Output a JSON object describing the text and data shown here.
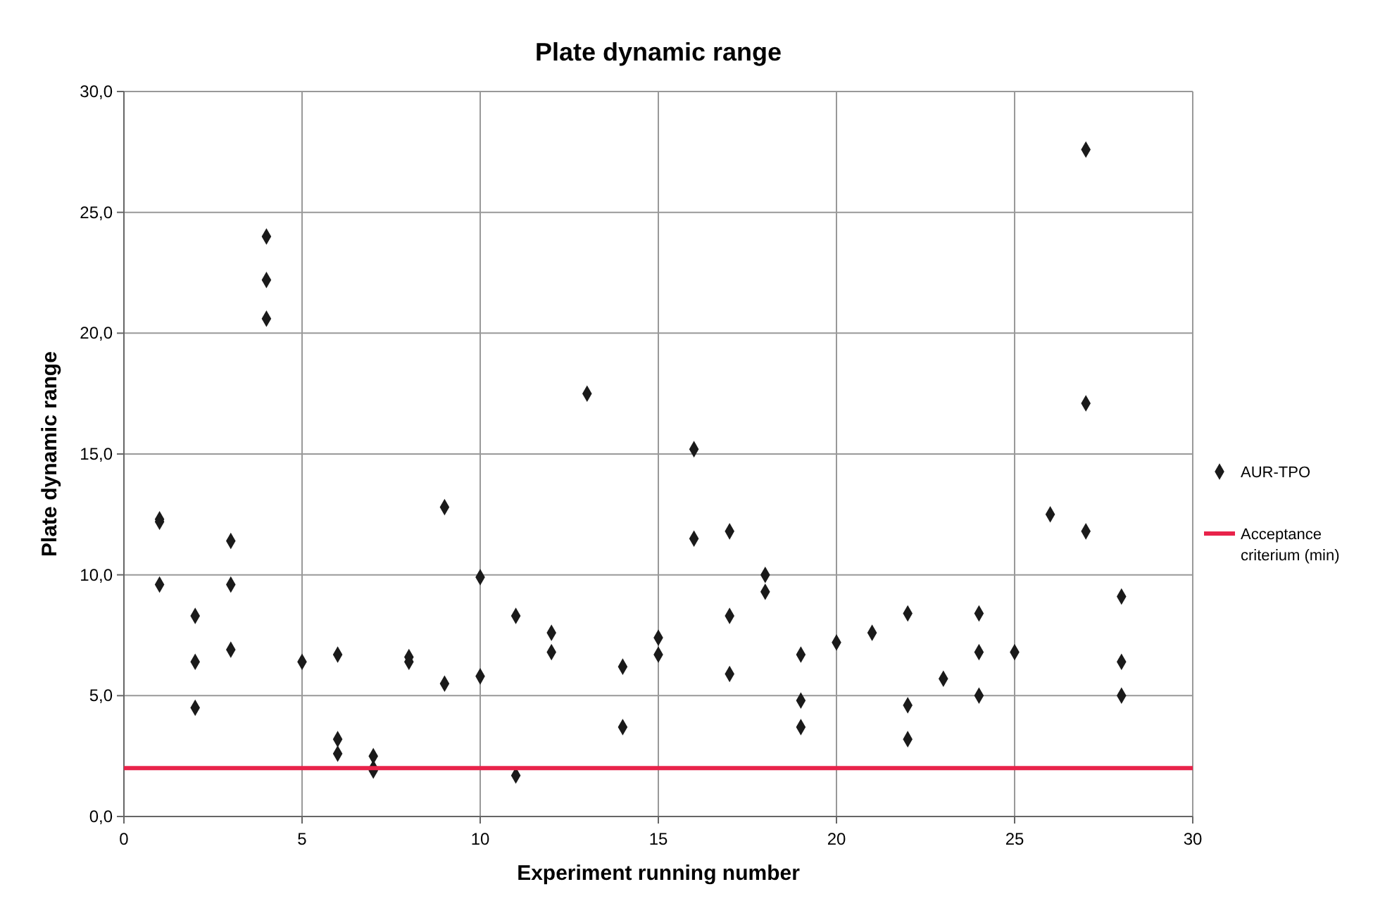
{
  "chart_data": {
    "type": "scatter",
    "title": "Plate dynamic range",
    "xlabel": "Experiment running number",
    "ylabel": "Plate dynamic range",
    "xlim": [
      0,
      30
    ],
    "xticks": [
      0,
      5,
      10,
      15,
      20,
      25,
      30
    ],
    "ylim": [
      0,
      30
    ],
    "yticks": [
      {
        "value": 0,
        "label": "0,0"
      },
      {
        "value": 5,
        "label": "5,0"
      },
      {
        "value": 10,
        "label": "10,0"
      },
      {
        "value": 15,
        "label": "15,0"
      },
      {
        "value": 20,
        "label": "20,0"
      },
      {
        "value": 25,
        "label": "25,0"
      },
      {
        "value": 30,
        "label": "30,0"
      }
    ],
    "grid": true,
    "legend": "right",
    "marker": "diamond",
    "series": [
      {
        "name": "AUR-TPO",
        "color": "#1a1a1a",
        "x": [
          1,
          1,
          1,
          2,
          2,
          2,
          3,
          3,
          3,
          4,
          4,
          4,
          5,
          6,
          6,
          6,
          7,
          7,
          7,
          8,
          8,
          9,
          9,
          10,
          10,
          11,
          11,
          12,
          12,
          13,
          14,
          14,
          15,
          15,
          16,
          16,
          17,
          17,
          17,
          18,
          18,
          19,
          19,
          19,
          20,
          21,
          22,
          22,
          22,
          23,
          24,
          24,
          24,
          25,
          26,
          27,
          27,
          27,
          28,
          28,
          28
        ],
        "values": [
          12.3,
          12.2,
          9.6,
          8.3,
          6.4,
          4.5,
          11.4,
          9.6,
          6.9,
          24.0,
          22.2,
          20.6,
          6.4,
          6.7,
          3.2,
          2.6,
          2.5,
          2.0,
          1.9,
          6.6,
          6.4,
          12.8,
          5.5,
          9.9,
          5.8,
          8.3,
          1.7,
          7.6,
          6.8,
          17.5,
          6.2,
          3.7,
          7.4,
          6.7,
          15.2,
          11.5,
          11.8,
          8.3,
          5.9,
          10.0,
          9.3,
          6.7,
          4.8,
          3.7,
          7.2,
          7.6,
          8.4,
          4.6,
          3.2,
          5.7,
          8.4,
          6.8,
          5.0,
          6.8,
          12.5,
          27.6,
          17.1,
          11.8,
          9.1,
          6.4,
          5.0
        ]
      },
      {
        "name": "Acceptance criterium (min)",
        "type": "line",
        "color": "#e8234a",
        "marker": "none",
        "x": [
          0,
          30
        ],
        "values": [
          2,
          2
        ]
      }
    ]
  }
}
